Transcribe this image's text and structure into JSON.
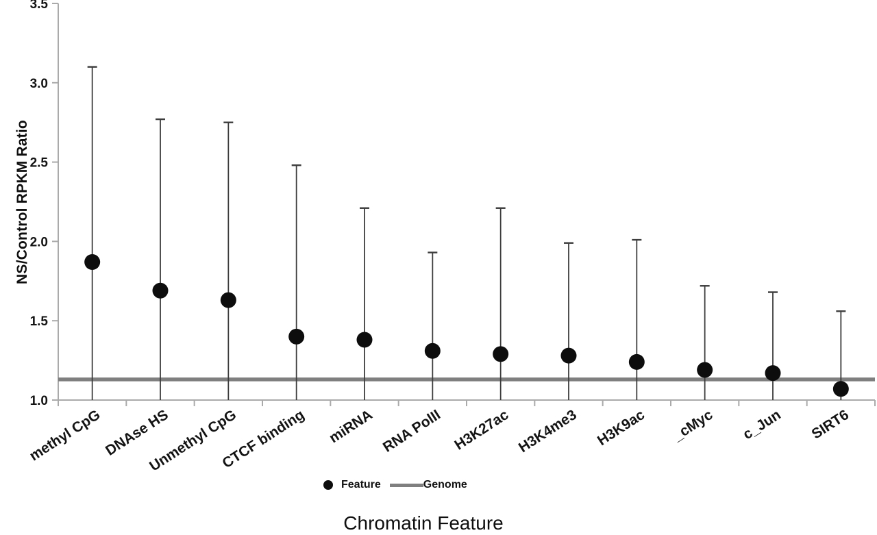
{
  "figure": {
    "ylabel": "NS/Control RPKM Ratio",
    "xlabel": "Chromatin Feature",
    "legend": {
      "feature_label": "Feature",
      "genome_label": "Genome"
    }
  },
  "chart_data": {
    "type": "scatter",
    "title": "",
    "xlabel": "Chromatin Feature",
    "ylabel": "NS/Control RPKM Ratio",
    "categories": [
      "methyl CpG",
      "DNAse HS",
      "Unmethyl CpG",
      "CTCF binding",
      "miRNA",
      "RNA PolII",
      "H3K27ac",
      "H3K4me3",
      "H3K9ac",
      "_cMyc",
      "c_Jun",
      "SIRT6"
    ],
    "series": [
      {
        "name": "Feature",
        "type": "point",
        "values": [
          1.87,
          1.69,
          1.63,
          1.4,
          1.38,
          1.31,
          1.29,
          1.28,
          1.24,
          1.19,
          1.17,
          1.07
        ],
        "error_upper": [
          3.1,
          2.77,
          2.75,
          2.48,
          2.21,
          1.93,
          2.21,
          1.99,
          2.01,
          1.72,
          1.68,
          1.56
        ],
        "error_lower_drawn_to_axis": true
      },
      {
        "name": "Genome",
        "type": "hline",
        "value": 1.13
      }
    ],
    "ylim": [
      1.0,
      3.5
    ],
    "ytick_step": 0.5,
    "ytick_labels": [
      "1.0",
      "1.5",
      "2.0",
      "2.5",
      "3.0",
      "3.5"
    ],
    "grid": false,
    "legend_position": "bottom",
    "colors": {
      "point": "#0d0d0d",
      "error_bar": "#3d3d3d",
      "genome_line": "#7f7f7f",
      "axis": "#aaaaaa",
      "text": "#141414"
    }
  }
}
